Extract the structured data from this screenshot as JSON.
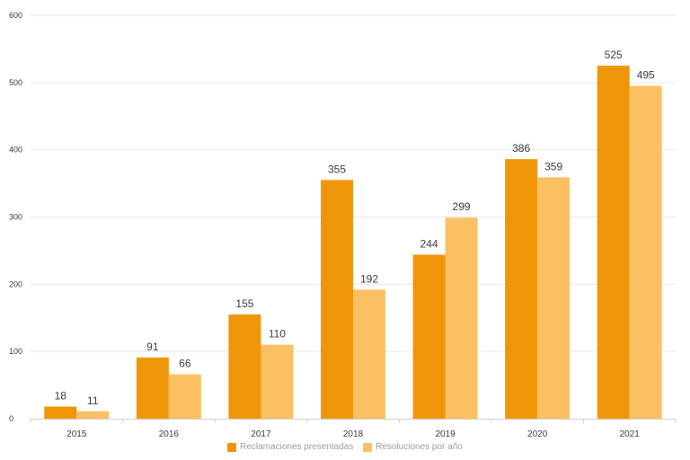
{
  "chart_data": {
    "type": "bar",
    "categories": [
      "2015",
      "2016",
      "2017",
      "2018",
      "2019",
      "2020",
      "2021"
    ],
    "series": [
      {
        "name": "Reclamaciones presentadas",
        "values": [
          18,
          91,
          155,
          355,
          244,
          386,
          525
        ],
        "color": "#EE9607"
      },
      {
        "name": "Resoluciones por año",
        "values": [
          11,
          66,
          110,
          192,
          299,
          359,
          495
        ],
        "color": "#FBC062"
      }
    ],
    "title": "",
    "xlabel": "",
    "ylabel": "",
    "ylim": [
      0,
      600
    ],
    "yticks": [
      "0",
      "100",
      "200",
      "300",
      "400",
      "500",
      "600"
    ],
    "grid": true,
    "legend_position": "bottom"
  }
}
